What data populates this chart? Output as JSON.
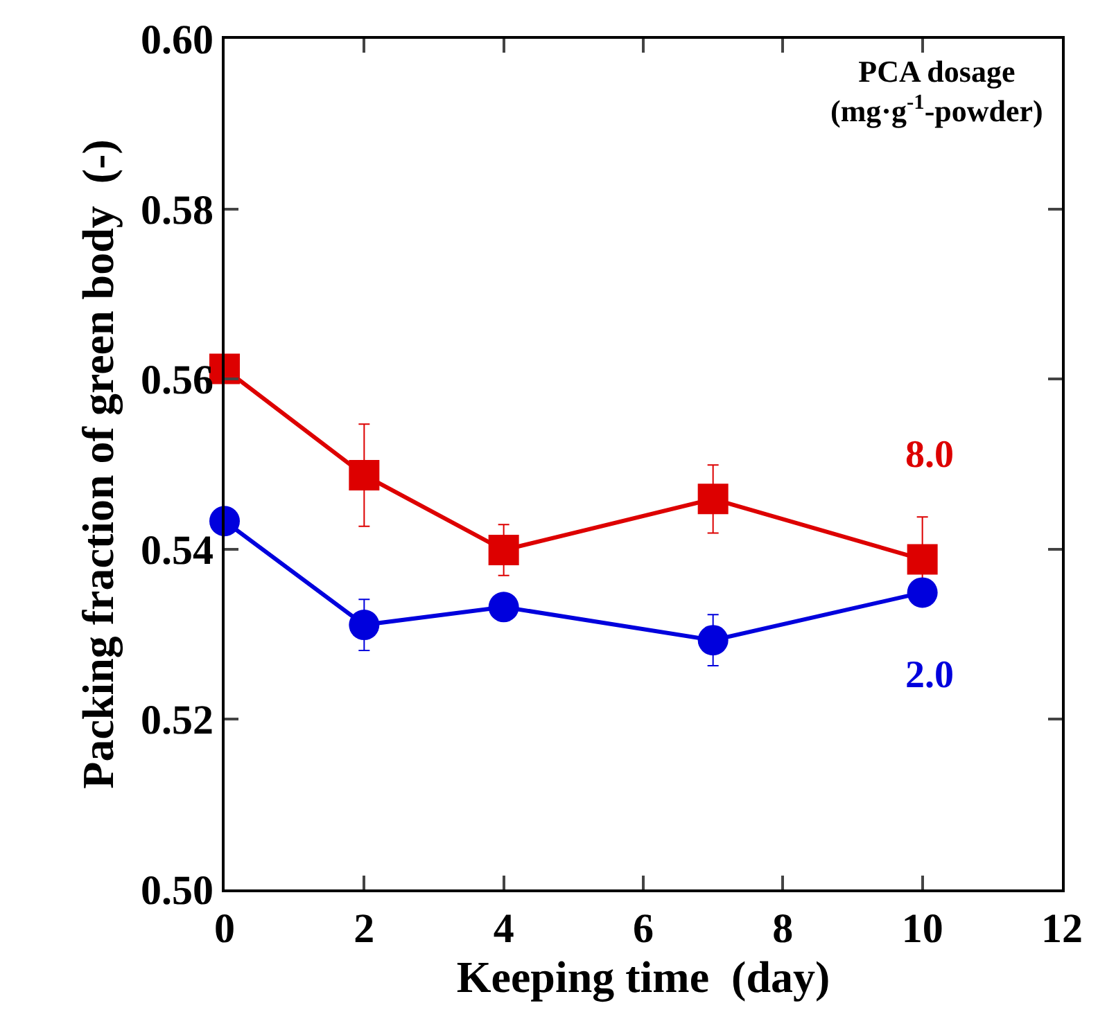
{
  "chart_data": {
    "type": "line",
    "xlabel": "Keeping time  (day)",
    "ylabel": "Packing fraction of green body  (-)",
    "legend_title": "PCA dosage\n(mg·g$^{-1}$-powder)",
    "x": [
      0,
      2,
      4,
      7,
      10
    ],
    "series": [
      {
        "name": "8.0",
        "color": "#dd0000",
        "marker": "square",
        "values": [
          0.5612,
          0.5487,
          0.5399,
          0.5459,
          0.5388
        ],
        "errors": [
          null,
          0.006,
          0.003,
          0.004,
          0.005
        ]
      },
      {
        "name": "2.0",
        "color": "#0000dd",
        "marker": "circle",
        "values": [
          0.5433,
          0.5311,
          0.5332,
          0.5293,
          0.5349
        ],
        "errors": [
          null,
          0.003,
          null,
          0.003,
          null
        ]
      }
    ],
    "xlim": [
      0,
      12
    ],
    "xticks": [
      0,
      2,
      4,
      6,
      8,
      10,
      12
    ],
    "ylim": [
      0.5,
      0.6
    ],
    "yticks": [
      {
        "value": 0.5,
        "label": "0.50"
      },
      {
        "value": 0.52,
        "label": "0.52"
      },
      {
        "value": 0.54,
        "label": "0.54"
      },
      {
        "value": 0.56,
        "label": "0.56"
      },
      {
        "value": 0.58,
        "label": "0.58"
      },
      {
        "value": 0.6,
        "label": "0.60"
      }
    ],
    "grid": false,
    "legend": false,
    "line_style": "solid"
  }
}
